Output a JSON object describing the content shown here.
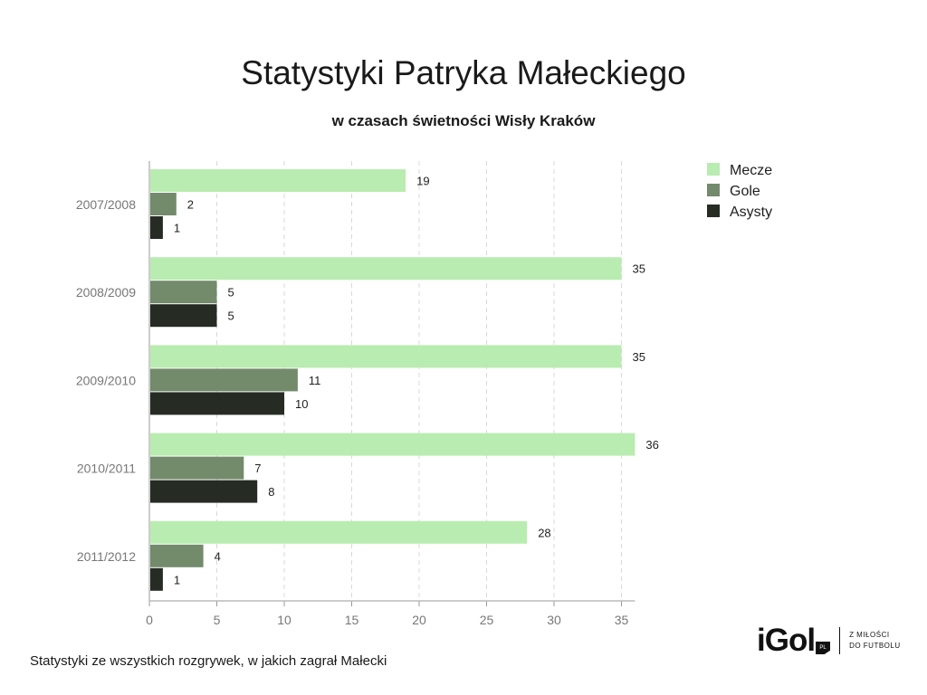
{
  "chart_data": {
    "type": "bar",
    "orientation": "horizontal",
    "title": "Statystyki Patryka Małeckiego",
    "subtitle": "w czasach świetności Wisły Kraków",
    "categories": [
      "2007/2008",
      "2008/2009",
      "2009/2010",
      "2010/2011",
      "2011/2012"
    ],
    "series": [
      {
        "name": "Mecze",
        "values": [
          19,
          35,
          35,
          36,
          28
        ],
        "color": "#b9ecb0"
      },
      {
        "name": "Gole",
        "values": [
          2,
          5,
          11,
          7,
          4
        ],
        "color": "#738a6b"
      },
      {
        "name": "Asysty",
        "values": [
          1,
          5,
          10,
          8,
          1
        ],
        "color": "#262b24"
      }
    ],
    "xticks": [
      0,
      5,
      10,
      15,
      20,
      25,
      30,
      35
    ],
    "xlim": [
      0,
      36
    ],
    "grid": true,
    "legend_position": "top-right",
    "data_labels": true
  },
  "footnote": "Statystyki ze wszystkich rozgrywek, w jakich zagrał Małecki",
  "logo": {
    "text": "iGol",
    "badge": "PL",
    "tagline_line1": "Z MIŁOŚCI",
    "tagline_line2": "DO FUTBOLU"
  }
}
